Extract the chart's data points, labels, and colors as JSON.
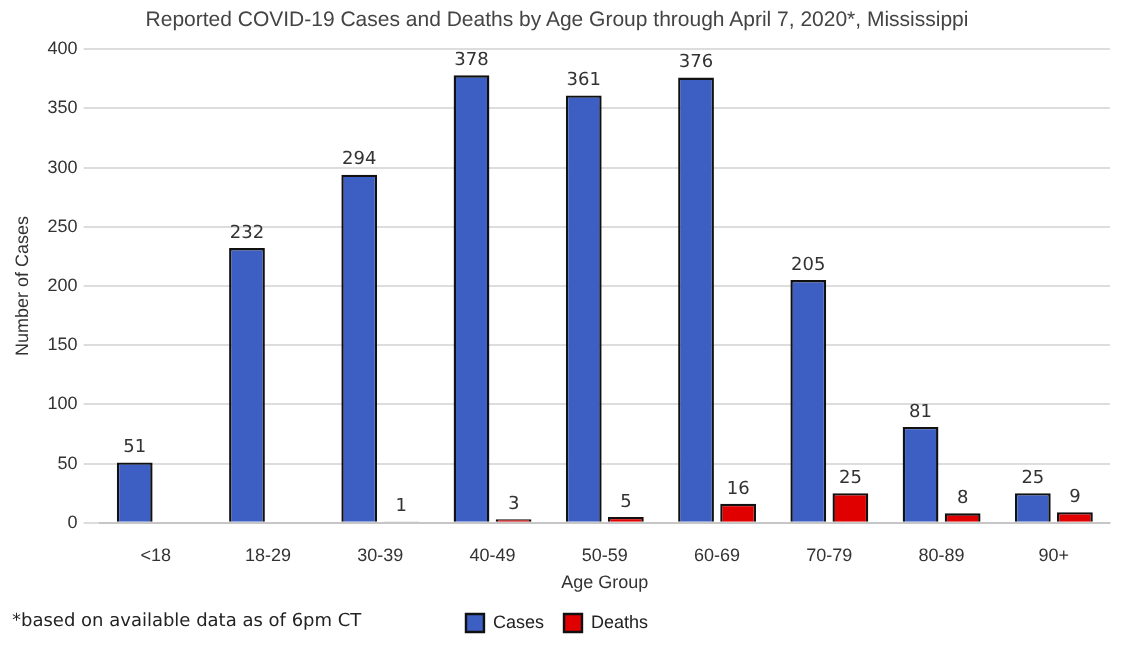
{
  "chart_data": {
    "type": "bar",
    "title": "Reported COVID-19 Cases and Deaths by Age Group through April 7, 2020*, Mississippi",
    "xlabel": "Age Group",
    "ylabel": "Number of Cases",
    "categories": [
      "<18",
      "18-29",
      "30-39",
      "40-49",
      "50-59",
      "60-69",
      "70-79",
      "80-89",
      "90+"
    ],
    "series": [
      {
        "name": "Cases",
        "color": "#3d5fc4",
        "values": [
          51,
          232,
          294,
          378,
          361,
          376,
          205,
          81,
          25
        ]
      },
      {
        "name": "Deaths",
        "color": "#e00000",
        "values": [
          null,
          null,
          1,
          3,
          5,
          16,
          25,
          8,
          9
        ]
      }
    ],
    "ylim": [
      0,
      400
    ],
    "yticks": [
      0,
      50,
      100,
      150,
      200,
      250,
      300,
      350,
      400
    ],
    "grid": "y",
    "legend": "bottom",
    "data_labels": true,
    "annotations": [
      "*based on available data as of 6pm CT"
    ]
  }
}
